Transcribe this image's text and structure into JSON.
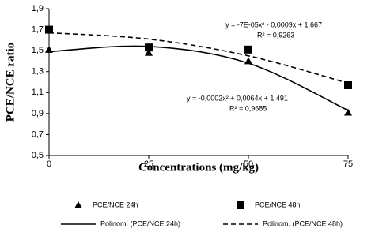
{
  "chart_data": {
    "type": "scatter",
    "x": [
      0,
      25,
      50,
      75
    ],
    "xlim": [
      0,
      75
    ],
    "xticks": [
      0,
      25,
      50,
      75
    ],
    "ylim": [
      0.5,
      1.9
    ],
    "yticks": [
      {
        "value": 0.5,
        "label": "0,5"
      },
      {
        "value": 0.7,
        "label": "0,7"
      },
      {
        "value": 0.9,
        "label": "0,9"
      },
      {
        "value": 1.1,
        "label": "1,1"
      },
      {
        "value": 1.3,
        "label": "1,3"
      },
      {
        "value": 1.5,
        "label": "1,5"
      },
      {
        "value": 1.7,
        "label": "1,7"
      },
      {
        "value": 1.9,
        "label": "1,9"
      }
    ],
    "xlabel": "Concentrations (mg/kg)",
    "ylabel": "PCE/NCE  ratio",
    "grid": false,
    "series": [
      {
        "name": "PCE/NCE 24h",
        "color": "#000000",
        "marker": "triangle",
        "values": [
          1.51,
          1.48,
          1.4,
          0.91
        ]
      },
      {
        "name": "PCE/NCE 48h",
        "color": "#000000",
        "marker": "square",
        "values": [
          1.7,
          1.53,
          1.51,
          1.17
        ]
      },
      {
        "name": "Polinom. (PCE/NCE 24h)",
        "color": "#000000",
        "line": "solid",
        "values": [
          1.49,
          1.54,
          1.38,
          0.93
        ]
      },
      {
        "name": "Polinom. (PCE/NCE 48h)",
        "color": "#000000",
        "line": "dashed",
        "values": [
          1.67,
          1.61,
          1.45,
          1.19
        ]
      }
    ],
    "annotations": [
      "y = -7E-05x² - 0,0009x + 1,667",
      "R² = 0,9263",
      "y = -0,0002x² + 0,0064x + 1,491",
      "R² = 0,9685"
    ]
  }
}
